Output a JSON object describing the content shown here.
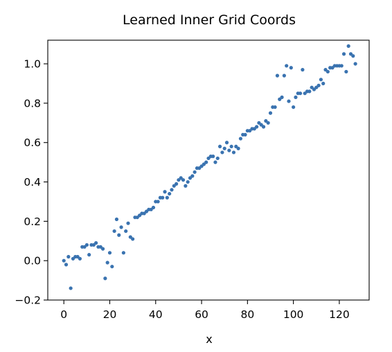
{
  "chart_data": {
    "type": "scatter",
    "title": "Learned Inner Grid Coords",
    "xlabel": "x",
    "ylabel": "",
    "xlim": [
      -7,
      133
    ],
    "ylim": [
      -0.2,
      1.12
    ],
    "xticks": [
      0,
      20,
      40,
      60,
      80,
      100,
      120
    ],
    "yticks": [
      -0.2,
      0.0,
      0.2,
      0.4,
      0.6,
      0.8,
      1.0
    ],
    "xtick_labels": [
      "0",
      "20",
      "40",
      "60",
      "80",
      "100",
      "120"
    ],
    "ytick_labels": [
      "−0.2",
      "0.0",
      "0.2",
      "0.4",
      "0.6",
      "0.8",
      "1.0"
    ],
    "grid": false,
    "marker_color": "#3a73b0",
    "series": [
      {
        "x": [
          0,
          1,
          2,
          3,
          4,
          5,
          6,
          7,
          8,
          9,
          10,
          11,
          12,
          13,
          14,
          15,
          16,
          17,
          18,
          19,
          20,
          21,
          22,
          23,
          24,
          25,
          26,
          27,
          28,
          29,
          30,
          31,
          32,
          33,
          34,
          35,
          36,
          37,
          38,
          39,
          40,
          41,
          42,
          43,
          44,
          45,
          46,
          47,
          48,
          49,
          50,
          51,
          52,
          53,
          54,
          55,
          56,
          57,
          58,
          59,
          60,
          61,
          62,
          63,
          64,
          65,
          66,
          67,
          68,
          69,
          70,
          71,
          72,
          73,
          74,
          75,
          76,
          77,
          78,
          79,
          80,
          81,
          82,
          83,
          84,
          85,
          86,
          87,
          88,
          89,
          90,
          91,
          92,
          93,
          94,
          95,
          96,
          97,
          98,
          99,
          100,
          101,
          102,
          103,
          104,
          105,
          106,
          107,
          108,
          109,
          110,
          111,
          112,
          113,
          114,
          115,
          116,
          117,
          118,
          119,
          120,
          121,
          122,
          123,
          124,
          125,
          126,
          127
        ],
        "y": [
          0.0,
          -0.02,
          0.02,
          -0.14,
          0.01,
          0.02,
          0.02,
          0.01,
          0.07,
          0.07,
          0.08,
          0.03,
          0.08,
          0.08,
          0.09,
          0.07,
          0.07,
          0.06,
          -0.09,
          -0.01,
          0.04,
          -0.03,
          0.15,
          0.21,
          0.13,
          0.17,
          0.04,
          0.15,
          0.19,
          0.12,
          0.11,
          0.22,
          0.22,
          0.23,
          0.24,
          0.24,
          0.25,
          0.26,
          0.26,
          0.27,
          0.3,
          0.3,
          0.32,
          0.32,
          0.35,
          0.32,
          0.34,
          0.36,
          0.38,
          0.39,
          0.41,
          0.42,
          0.41,
          0.38,
          0.4,
          0.42,
          0.43,
          0.45,
          0.47,
          0.47,
          0.48,
          0.49,
          0.5,
          0.52,
          0.53,
          0.53,
          0.5,
          0.52,
          0.58,
          0.55,
          0.57,
          0.6,
          0.56,
          0.58,
          0.55,
          0.58,
          0.57,
          0.62,
          0.64,
          0.64,
          0.66,
          0.66,
          0.67,
          0.67,
          0.68,
          0.7,
          0.69,
          0.68,
          0.71,
          0.7,
          0.75,
          0.78,
          0.78,
          0.94,
          0.82,
          0.83,
          0.94,
          0.99,
          0.81,
          0.98,
          0.78,
          0.83,
          0.85,
          0.85,
          0.97,
          0.85,
          0.86,
          0.86,
          0.88,
          0.87,
          0.88,
          0.89,
          0.92,
          0.9,
          0.97,
          0.96,
          0.98,
          0.98,
          0.99,
          0.99,
          0.99,
          0.99,
          1.05,
          0.96,
          1.09,
          1.05,
          1.04,
          1.0
        ]
      }
    ]
  }
}
